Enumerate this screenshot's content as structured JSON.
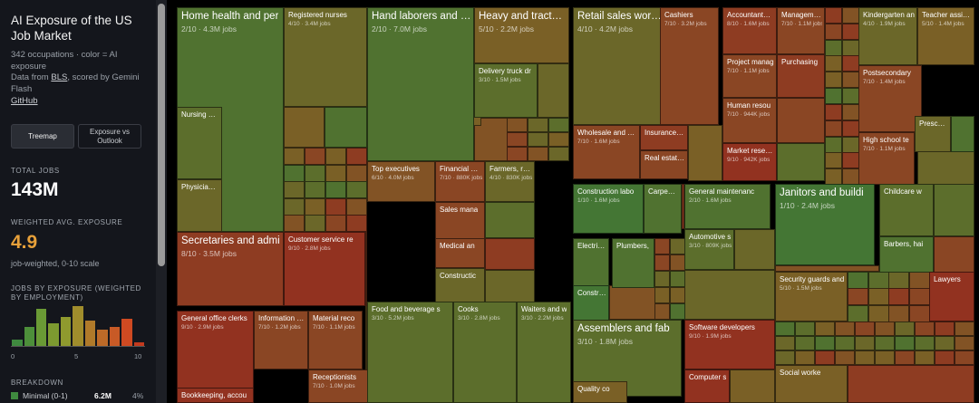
{
  "sidebar": {
    "title": "AI Exposure of the US Job Market",
    "subtitle": "342 occupations · color = AI exposure",
    "data_prefix": "Data from ",
    "data_link": "BLS",
    "data_suffix": ", scored by Gemini Flash",
    "github": "GitHub",
    "buttons": {
      "treemap": "Treemap",
      "exposure_vs_outlook": "Exposure vs Outlook"
    },
    "total_jobs_label": "TOTAL JOBS",
    "total_jobs_value": "143M",
    "avg_label": "WEIGHTED AVG. EXPOSURE",
    "avg_value": "4.9",
    "avg_note": "job-weighted, 0-10 scale",
    "histogram_label": "JOBS BY EXPOSURE (WEIGHTED BY EMPLOYMENT)",
    "histogram": {
      "scores": [
        0,
        1,
        2,
        3,
        4,
        5,
        6,
        7,
        8,
        9,
        10
      ],
      "relative_jobs": [
        0.15,
        0.45,
        0.9,
        0.55,
        0.7,
        0.95,
        0.6,
        0.4,
        0.45,
        0.65,
        0.08
      ],
      "colors": [
        "#3f8a3f",
        "#4d8f3a",
        "#6a9a35",
        "#7d9a30",
        "#8f9a2e",
        "#a08d2c",
        "#b07a2a",
        "#bd6a28",
        "#c85a26",
        "#cf4a22",
        "#c33a1e"
      ],
      "tick_labels": [
        "0",
        "5",
        "10"
      ]
    },
    "breakdown_label": "BREAKDOWN",
    "breakdown_row": {
      "label": "Minimal (0-1)",
      "jobs": "6.2M",
      "pct": "4%",
      "color": "#3f8a3f"
    }
  },
  "treemap": {
    "tiles": [
      {
        "name": "Home health and per",
        "sub": "2/10 · 4.3M jobs",
        "exposure": 2
      },
      {
        "name": "Registered nurses",
        "sub": "4/10 · 3.4M jobs",
        "exposure": 4
      },
      {
        "name": "Nursing ass",
        "sub": "",
        "exposure": 3
      },
      {
        "name": "Physicians a",
        "sub": "",
        "exposure": 4
      },
      {
        "name": "Hand laborers and ma",
        "sub": "2/10 · 7.0M jobs",
        "exposure": 2
      },
      {
        "name": "Heavy and tractor-tr",
        "sub": "5/10 · 2.2M jobs",
        "exposure": 5
      },
      {
        "name": "Delivery truck dr",
        "sub": "3/10 · 1.5M jobs",
        "exposure": 3
      },
      {
        "name": "Retail sales workers",
        "sub": "4/10 · 4.2M jobs",
        "exposure": 4
      },
      {
        "name": "Cashiers",
        "sub": "7/10 · 3.2M jobs",
        "exposure": 7
      },
      {
        "name": "Wholesale and mar",
        "sub": "7/10 · 1.6M jobs",
        "exposure": 7
      },
      {
        "name": "Insurance sa",
        "sub": "",
        "exposure": 8
      },
      {
        "name": "Real estate b",
        "sub": "",
        "exposure": 7
      },
      {
        "name": "Accountants and au",
        "sub": "8/10 · 1.6M jobs",
        "exposure": 8
      },
      {
        "name": "Management a",
        "sub": "7/10 · 1.1M jobs",
        "exposure": 7
      },
      {
        "name": "Project manag",
        "sub": "7/10 · 1.1M jobs",
        "exposure": 7
      },
      {
        "name": "Purchasing",
        "sub": "",
        "exposure": 8
      },
      {
        "name": "Human resou",
        "sub": "7/10 · 944K jobs",
        "exposure": 7
      },
      {
        "name": "Market researc",
        "sub": "9/10 · 942K jobs",
        "exposure": 9
      },
      {
        "name": "Kindergarten an",
        "sub": "4/10 · 1.9M jobs",
        "exposure": 4
      },
      {
        "name": "Teacher assista",
        "sub": "5/10 · 1.4M jobs",
        "exposure": 5
      },
      {
        "name": "Postsecondary",
        "sub": "7/10 · 1.4M jobs",
        "exposure": 7
      },
      {
        "name": "High school te",
        "sub": "7/10 · 1.1M jobs",
        "exposure": 7
      },
      {
        "name": "Preschool",
        "sub": "",
        "exposure": 4
      },
      {
        "name": "Secretaries and admi",
        "sub": "8/10 · 3.5M jobs",
        "exposure": 8
      },
      {
        "name": "Customer service re",
        "sub": "9/10 · 2.8M jobs",
        "exposure": 9
      },
      {
        "name": "General office clerks",
        "sub": "9/10 · 2.9M jobs",
        "exposure": 9
      },
      {
        "name": "Information cle",
        "sub": "7/10 · 1.2M jobs",
        "exposure": 7
      },
      {
        "name": "Material reco",
        "sub": "7/10 · 1.1M jobs",
        "exposure": 7
      },
      {
        "name": "Receptionists",
        "sub": "7/10 · 1.0M jobs",
        "exposure": 7
      },
      {
        "name": "Bookkeeping, accou",
        "sub": "",
        "exposure": 9
      },
      {
        "name": "Top executives",
        "sub": "6/10 · 4.0M jobs",
        "exposure": 6
      },
      {
        "name": "Financial mar",
        "sub": "7/10 · 880K jobs",
        "exposure": 7
      },
      {
        "name": "Farmers, ranc",
        "sub": "4/10 · 830K jobs",
        "exposure": 4
      },
      {
        "name": "Sales mana",
        "sub": "",
        "exposure": 7
      },
      {
        "name": "Medical an",
        "sub": "",
        "exposure": 7
      },
      {
        "name": "Constructic",
        "sub": "",
        "exposure": 4
      },
      {
        "name": "Food and beverage s",
        "sub": "3/10 · 5.2M jobs",
        "exposure": 3
      },
      {
        "name": "Cooks",
        "sub": "3/10 · 2.8M jobs",
        "exposure": 3
      },
      {
        "name": "Waiters and w",
        "sub": "3/10 · 2.2M jobs",
        "exposure": 3
      },
      {
        "name": "Construction labo",
        "sub": "1/10 · 1.6M jobs",
        "exposure": 1
      },
      {
        "name": "Carpenter",
        "sub": "",
        "exposure": 2
      },
      {
        "name": "Electrician",
        "sub": "",
        "exposure": 2
      },
      {
        "name": "Plumbers,",
        "sub": "",
        "exposure": 2
      },
      {
        "name": "Constructi",
        "sub": "",
        "exposure": 1
      },
      {
        "name": "General maintenanc",
        "sub": "2/10 · 1.6M jobs",
        "exposure": 2
      },
      {
        "name": "Automotive s",
        "sub": "3/10 · 809K jobs",
        "exposure": 3
      },
      {
        "name": "Janitors and buildi",
        "sub": "1/10 · 2.4M jobs",
        "exposure": 1
      },
      {
        "name": "Childcare w",
        "sub": "",
        "exposure": 3
      },
      {
        "name": "Barbers, hai",
        "sub": "",
        "exposure": 2
      },
      {
        "name": "Security guards and",
        "sub": "5/10 · 1.5M jobs",
        "exposure": 5
      },
      {
        "name": "Lawyers",
        "sub": "",
        "exposure": 9
      },
      {
        "name": "Social worke",
        "sub": "",
        "exposure": 5
      },
      {
        "name": "Assemblers and fab",
        "sub": "3/10 · 1.8M jobs",
        "exposure": 3
      },
      {
        "name": "Quality co",
        "sub": "",
        "exposure": 5
      },
      {
        "name": "Software developers",
        "sub": "9/10 · 1.9M jobs",
        "exposure": 9
      },
      {
        "name": "Computer s",
        "sub": "",
        "exposure": 9
      }
    ],
    "filler_exposures": [
      4,
      6,
      3,
      7,
      5,
      2,
      8,
      5,
      3,
      6,
      7,
      4,
      2,
      5,
      6,
      3,
      8,
      4,
      5,
      7,
      3,
      6,
      4,
      2,
      7,
      5,
      3,
      6,
      8,
      4
    ]
  }
}
